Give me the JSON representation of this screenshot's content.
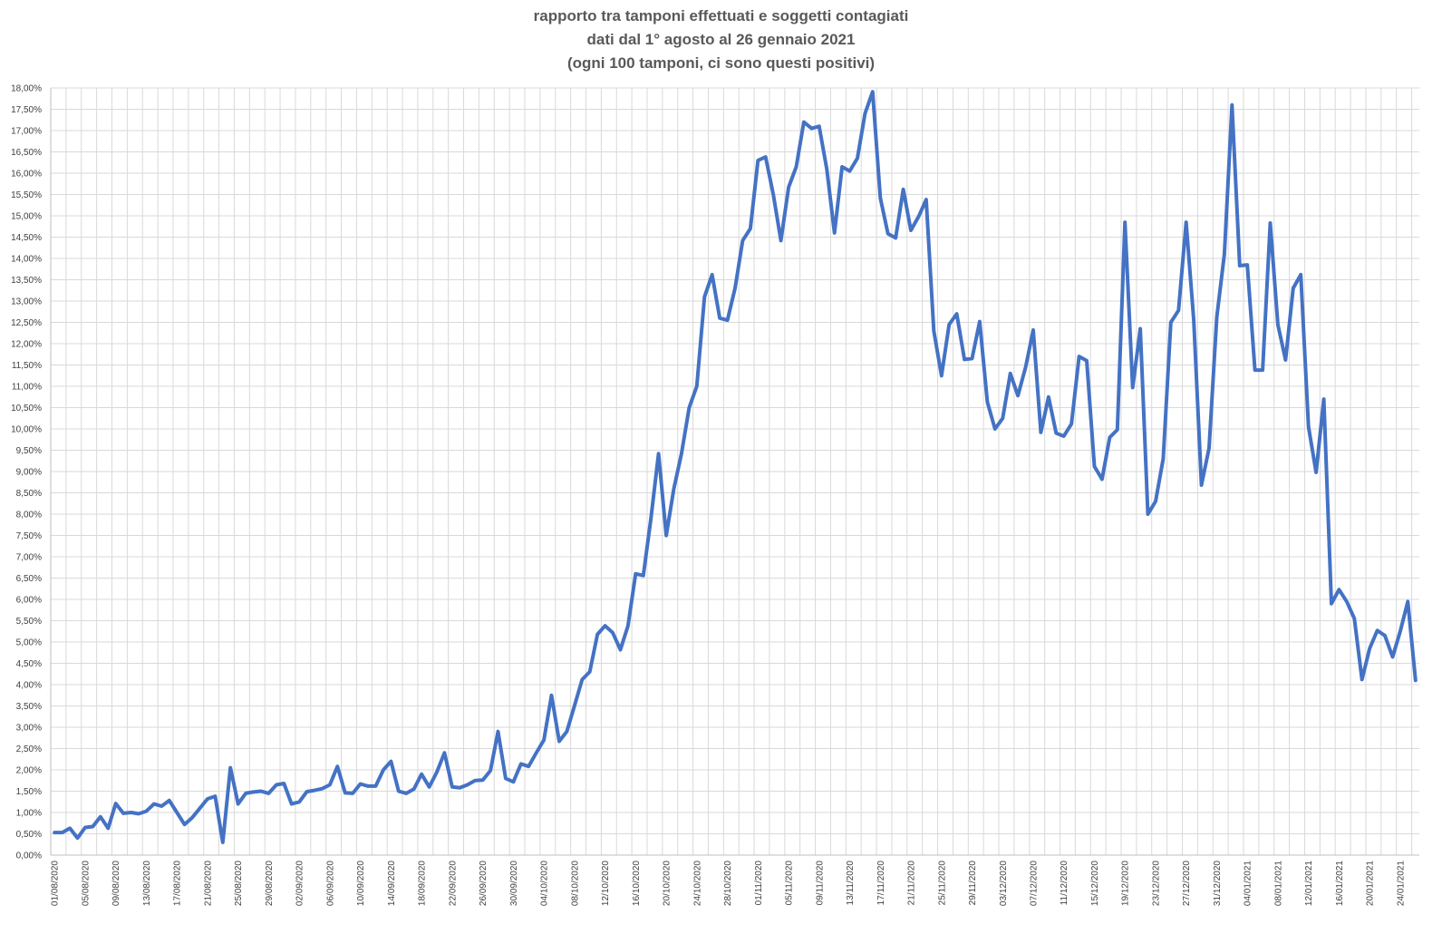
{
  "chart_data": {
    "type": "line",
    "title": [
      "rapporto tra tamponi effettuati e soggetti contagiati",
      "dati dal 1° agosto al 26 gennaio 2021",
      "(ogni 100 tamponi, ci sono questi positivi)"
    ],
    "xlabel": "",
    "ylabel": "",
    "ylim": [
      0,
      18
    ],
    "grid": true,
    "legend": "none",
    "line_color": "#4472C4",
    "y_tick_labels": [
      "0,00%",
      "0,50%",
      "1,00%",
      "1,50%",
      "2,00%",
      "2,50%",
      "3,00%",
      "3,50%",
      "4,00%",
      "4,50%",
      "5,00%",
      "5,50%",
      "6,00%",
      "6,50%",
      "7,00%",
      "7,50%",
      "8,00%",
      "8,50%",
      "9,00%",
      "9,50%",
      "10,00%",
      "10,50%",
      "11,00%",
      "11,50%",
      "12,00%",
      "12,50%",
      "13,00%",
      "13,50%",
      "14,00%",
      "14,50%",
      "15,00%",
      "15,50%",
      "16,00%",
      "16,50%",
      "17,00%",
      "17,50%",
      "18,00%"
    ],
    "x_tick_labels": [
      "01/08/2020",
      "05/08/2020",
      "09/08/2020",
      "13/08/2020",
      "17/08/2020",
      "21/08/2020",
      "25/08/2020",
      "29/08/2020",
      "02/09/2020",
      "06/09/2020",
      "10/09/2020",
      "14/09/2020",
      "18/09/2020",
      "22/09/2020",
      "26/09/2020",
      "30/09/2020",
      "04/10/2020",
      "08/10/2020",
      "12/10/2020",
      "16/10/2020",
      "20/10/2020",
      "24/10/2020",
      "28/10/2020",
      "01/11/2020",
      "05/11/2020",
      "09/11/2020",
      "13/11/2020",
      "17/11/2020",
      "21/11/2020",
      "25/11/2020",
      "29/11/2020",
      "03/12/2020",
      "07/12/2020",
      "11/12/2020",
      "15/12/2020",
      "19/12/2020",
      "23/12/2020",
      "27/12/2020",
      "31/12/2020",
      "04/01/2021",
      "08/01/2021",
      "12/01/2021",
      "16/01/2021",
      "20/01/2021",
      "24/01/2021"
    ],
    "x_start": "01/08/2020",
    "x_end": "26/01/2021",
    "series": [
      {
        "values": [
          0.53,
          0.53,
          0.63,
          0.4,
          0.65,
          0.67,
          0.9,
          0.63,
          1.21,
          0.98,
          1.0,
          0.97,
          1.03,
          1.2,
          1.15,
          1.28,
          1.0,
          0.72,
          0.88,
          1.1,
          1.32,
          1.38,
          0.3,
          2.05,
          1.2,
          1.45,
          1.48,
          1.5,
          1.45,
          1.65,
          1.68,
          1.2,
          1.25,
          1.49,
          1.52,
          1.56,
          1.65,
          2.08,
          1.46,
          1.45,
          1.67,
          1.62,
          1.62,
          2.0,
          2.2,
          1.5,
          1.45,
          1.55,
          1.9,
          1.6,
          1.95,
          2.4,
          1.6,
          1.58,
          1.65,
          1.75,
          1.76,
          1.98,
          2.9,
          1.8,
          1.72,
          2.14,
          2.08,
          2.4,
          2.7,
          3.75,
          2.67,
          2.9,
          3.5,
          4.12,
          4.3,
          5.18,
          5.38,
          5.22,
          4.82,
          5.38,
          6.6,
          6.56,
          7.9,
          9.42,
          7.5,
          8.6,
          9.42,
          10.5,
          11.0,
          13.1,
          13.62,
          12.6,
          12.55,
          13.3,
          14.42,
          14.7,
          16.3,
          16.38,
          15.5,
          14.42,
          15.67,
          16.15,
          17.2,
          17.05,
          17.1,
          16.1,
          14.6,
          16.15,
          16.05,
          16.35,
          17.4,
          17.91,
          15.42,
          14.58,
          14.48,
          15.62,
          14.66,
          14.98,
          15.38,
          12.3,
          11.25,
          12.45,
          12.7,
          11.63,
          11.65,
          12.52,
          10.63,
          10.0,
          10.25,
          11.3,
          10.78,
          11.45,
          12.32,
          9.92,
          10.75,
          9.9,
          9.83,
          10.12,
          11.7,
          11.6,
          9.12,
          8.82,
          9.8,
          9.98,
          14.85,
          10.97,
          12.35,
          8.0,
          8.3,
          9.3,
          12.5,
          12.78,
          14.85,
          12.55,
          8.68,
          9.55,
          12.62,
          14.1,
          17.6,
          13.83,
          13.85,
          11.38,
          11.38,
          14.83,
          12.45,
          11.62,
          13.3,
          13.62,
          10.05,
          8.98,
          10.7,
          5.9,
          6.23,
          5.95,
          5.55,
          4.12,
          4.85,
          5.27,
          5.15,
          4.65,
          5.25,
          5.95,
          4.1
        ]
      }
    ]
  }
}
